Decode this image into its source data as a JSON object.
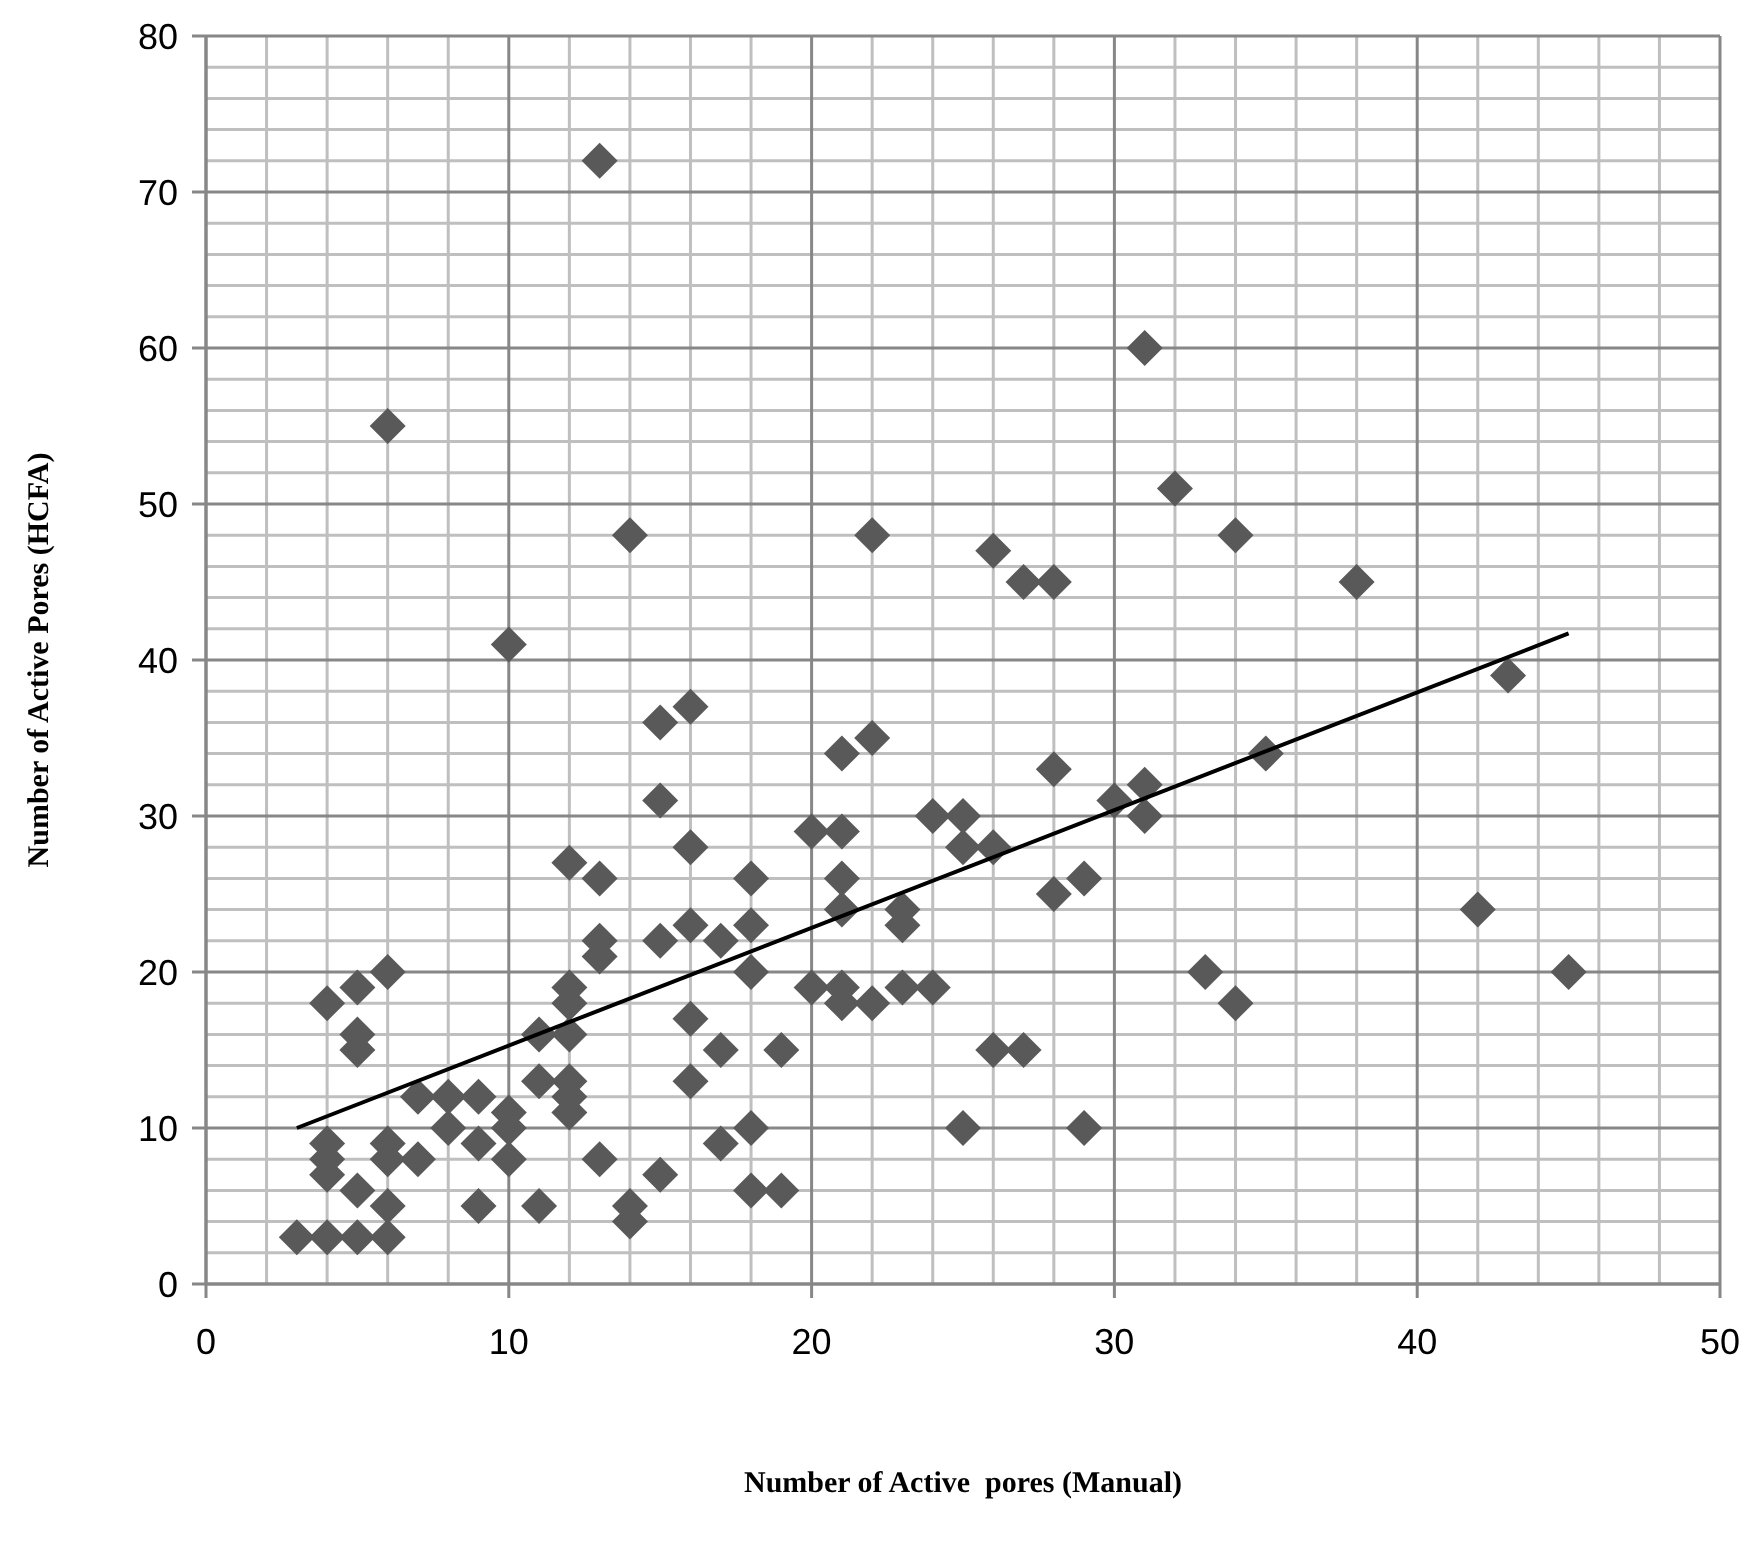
{
  "chart_data": {
    "type": "scatter",
    "xlabel": "Number of Active  pores (Manual)",
    "ylabel": "Number of Active Pores (HCFA)",
    "xlim": [
      0,
      50
    ],
    "ylim": [
      0,
      80
    ],
    "xticks": [
      0,
      10,
      20,
      30,
      40,
      50
    ],
    "yticks": [
      0,
      10,
      20,
      30,
      40,
      50,
      60,
      70,
      80
    ],
    "grid": true,
    "marker": "diamond",
    "series": [
      {
        "color": "#595959",
        "x": [
          3,
          4,
          5,
          6,
          4,
          4,
          4,
          4,
          5,
          5,
          5,
          5,
          6,
          6,
          6,
          6,
          6,
          7,
          7,
          8,
          8,
          9,
          9,
          9,
          10,
          10,
          10,
          10,
          11,
          11,
          11,
          12,
          12,
          12,
          12,
          12,
          12,
          12,
          13,
          13,
          13,
          13,
          13,
          14,
          14,
          14,
          15,
          15,
          15,
          15,
          16,
          16,
          16,
          16,
          16,
          17,
          17,
          17,
          18,
          18,
          18,
          18,
          18,
          19,
          19,
          20,
          20,
          21,
          21,
          21,
          21,
          21,
          21,
          22,
          22,
          22,
          23,
          23,
          23,
          24,
          24,
          25,
          25,
          25,
          26,
          26,
          26,
          27,
          27,
          28,
          28,
          28,
          29,
          29,
          30,
          31,
          31,
          31,
          32,
          33,
          34,
          34,
          35,
          38,
          42,
          43,
          45
        ],
        "values": [
          3,
          3,
          3,
          3,
          7,
          8,
          9,
          18,
          6,
          15,
          16,
          19,
          5,
          8,
          9,
          20,
          55,
          8,
          12,
          10,
          12,
          5,
          9,
          12,
          8,
          10,
          11,
          41,
          5,
          13,
          16,
          11,
          12,
          13,
          16,
          18,
          19,
          27,
          8,
          21,
          22,
          26,
          72,
          4,
          5,
          48,
          7,
          22,
          31,
          36,
          13,
          17,
          23,
          28,
          37,
          9,
          15,
          22,
          6,
          10,
          20,
          23,
          26,
          6,
          15,
          19,
          29,
          18,
          19,
          24,
          26,
          29,
          34,
          18,
          35,
          48,
          19,
          23,
          24,
          19,
          30,
          10,
          28,
          30,
          15,
          28,
          47,
          15,
          45,
          25,
          33,
          45,
          10,
          26,
          31,
          30,
          32,
          60,
          51,
          20,
          18,
          48,
          34,
          45,
          24,
          39,
          20
        ]
      },
      {
        "type": "line",
        "color": "#000000",
        "marker": "none",
        "x": [
          3,
          45
        ],
        "values": [
          10,
          41.7
        ]
      }
    ]
  }
}
